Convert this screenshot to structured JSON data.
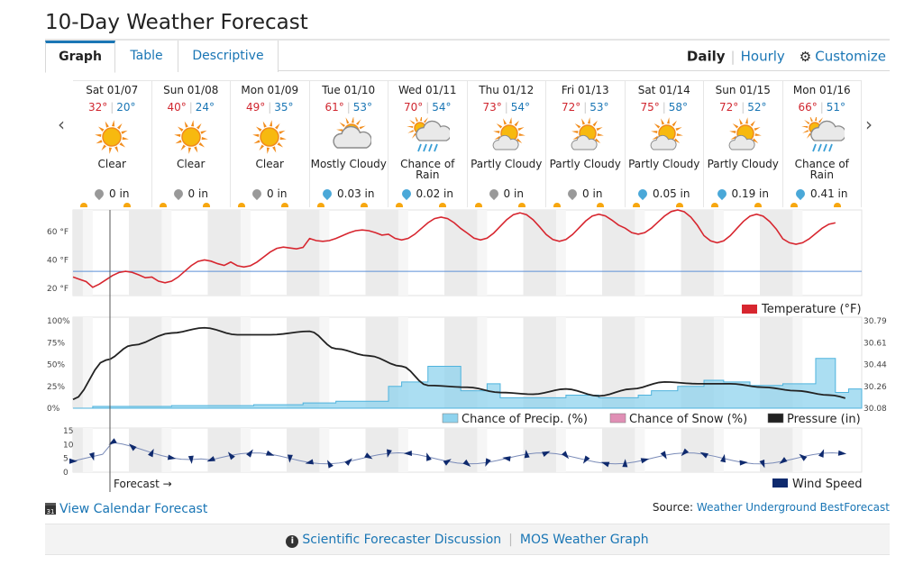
{
  "page_title": "10-Day Weather Forecast",
  "tabs": [
    {
      "label": "Graph",
      "active": true
    },
    {
      "label": "Table",
      "active": false
    },
    {
      "label": "Descriptive",
      "active": false
    }
  ],
  "view_toggle": {
    "daily": "Daily",
    "hourly": "Hourly",
    "customize": "Customize"
  },
  "days": [
    {
      "name": "Sat 01/07",
      "hi": "32°",
      "lo": "20°",
      "cond": "Clear",
      "icon": "sun",
      "precip": "0 in",
      "drop": "gray"
    },
    {
      "name": "Sun 01/08",
      "hi": "40°",
      "lo": "24°",
      "cond": "Clear",
      "icon": "sun",
      "precip": "0 in",
      "drop": "gray"
    },
    {
      "name": "Mon 01/09",
      "hi": "49°",
      "lo": "35°",
      "cond": "Clear",
      "icon": "sun",
      "precip": "0 in",
      "drop": "gray"
    },
    {
      "name": "Tue 01/10",
      "hi": "61°",
      "lo": "53°",
      "cond": "Mostly Cloudy",
      "icon": "mostly-cloudy",
      "precip": "0.03 in",
      "drop": "blue"
    },
    {
      "name": "Wed 01/11",
      "hi": "70°",
      "lo": "54°",
      "cond": "Chance of Rain",
      "icon": "rain",
      "precip": "0.02 in",
      "drop": "blue"
    },
    {
      "name": "Thu 01/12",
      "hi": "73°",
      "lo": "54°",
      "cond": "Partly Cloudy",
      "icon": "partly-cloudy",
      "precip": "0 in",
      "drop": "gray"
    },
    {
      "name": "Fri 01/13",
      "hi": "72°",
      "lo": "53°",
      "cond": "Partly Cloudy",
      "icon": "partly-cloudy",
      "precip": "0 in",
      "drop": "gray"
    },
    {
      "name": "Sat 01/14",
      "hi": "75°",
      "lo": "58°",
      "cond": "Partly Cloudy",
      "icon": "partly-cloudy",
      "precip": "0.05 in",
      "drop": "blue"
    },
    {
      "name": "Sun 01/15",
      "hi": "72°",
      "lo": "52°",
      "cond": "Partly Cloudy",
      "icon": "partly-cloudy",
      "precip": "0.19 in",
      "drop": "blue"
    },
    {
      "name": "Mon 01/16",
      "hi": "66°",
      "lo": "51°",
      "cond": "Chance of Rain",
      "icon": "rain",
      "precip": "0.41 in",
      "drop": "blue"
    }
  ],
  "charts": {
    "temperature": {
      "y_ticks": [
        "60 °F",
        "40 °F",
        "20 °F"
      ],
      "legend": "Temperature (°F)",
      "color": "#d7262f",
      "freezing_line": 32
    },
    "precip": {
      "y_ticks_left": [
        "100%",
        "75%",
        "50%",
        "25%",
        "0%"
      ],
      "y_ticks_right": [
        "30.79",
        "30.61",
        "30.44",
        "30.26",
        "30.08"
      ],
      "legend_precip": "Chance of Precip. (%)",
      "legend_snow": "Chance of Snow (%)",
      "legend_pressure": "Pressure (in)",
      "precip_color": "#8fd3ee",
      "snow_color": "#e08fb5",
      "pressure_color": "#222222"
    },
    "wind": {
      "y_ticks": [
        "15",
        "10",
        "5",
        "0"
      ],
      "legend": "Wind Speed",
      "color": "#0f2a6e"
    },
    "forecast_label": "Forecast →"
  },
  "footer": {
    "calendar_link": "View Calendar Forecast",
    "calendar_icon_text": "31",
    "source_label": "Source:",
    "source_link": "Weather Underground BestForecast",
    "discussion_link": "Scientific Forecaster Discussion",
    "mos_link": "MOS Weather Graph"
  }
}
